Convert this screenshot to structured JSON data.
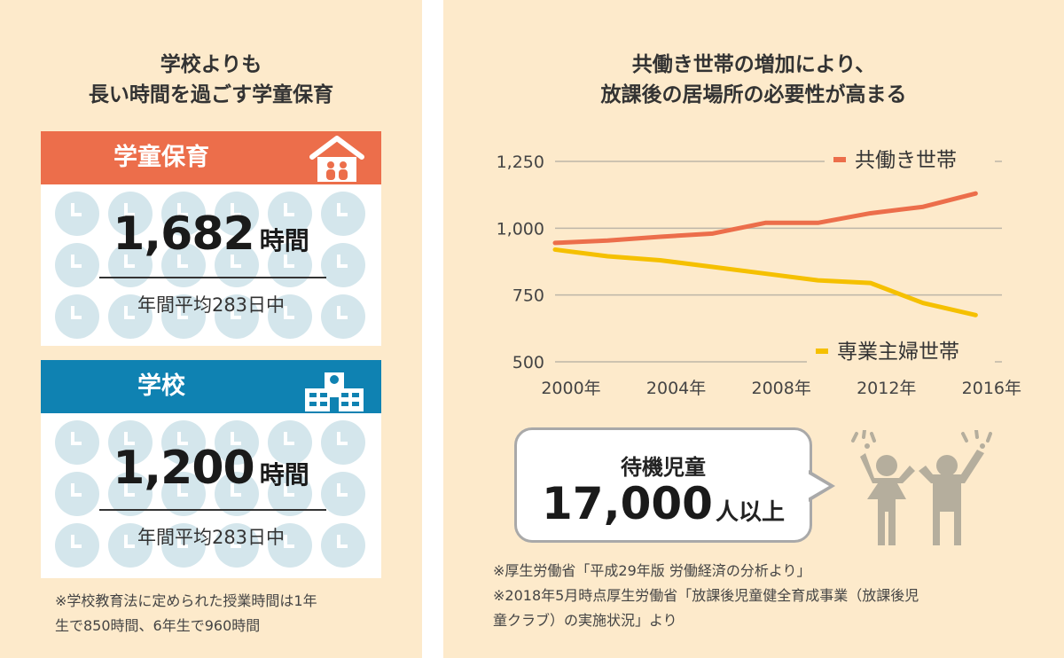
{
  "left": {
    "title_lines": [
      "学校よりも",
      "長い時間を過ごす学童保育"
    ],
    "gakudo": {
      "header": "学童保育",
      "value": "1,682",
      "unit": "時間",
      "sub": "年間平均283日中",
      "icon": "house-icon",
      "color": "#ec6e4b"
    },
    "school": {
      "header": "学校",
      "value": "1,200",
      "unit": "時間",
      "sub": "年間平均283日中",
      "icon": "school-building-icon",
      "color": "#0f82b2"
    },
    "note_lines": [
      "※学校教育法に定められた授業時間は1年",
      "生で850時間、6年生で960時間"
    ]
  },
  "right": {
    "title_lines": [
      "共働き世帯の増加により、",
      "放課後の居場所の必要性が高まる"
    ],
    "bubble": {
      "label": "待機児童",
      "value": "17,000",
      "unit": "人以上"
    },
    "note_lines": [
      "※厚生労働省「平成29年版 労働経済の分析より」",
      "※2018年5月時点厚生労働省「放課後児童健全育成事業（放課後児",
      "童クラブ）の実施状況」より"
    ]
  },
  "chart_data": {
    "type": "line",
    "x": [
      2000,
      2002,
      2004,
      2006,
      2008,
      2010,
      2012,
      2014,
      2016
    ],
    "x_tick_labels": [
      "2000年",
      "2004年",
      "2008年",
      "2012年",
      "2016年"
    ],
    "x_tick_values": [
      2000,
      2004,
      2008,
      2012,
      2016
    ],
    "y_ticks": [
      "500",
      "750",
      "1,000",
      "1,250"
    ],
    "y_tick_values": [
      500,
      750,
      1000,
      1250
    ],
    "ylim": [
      500,
      1250
    ],
    "xlim": [
      2000,
      2017
    ],
    "grid": true,
    "series": [
      {
        "name": "共働き世帯",
        "color": "#ec6e4b",
        "values": [
          945,
          954,
          968,
          980,
          1020,
          1020,
          1056,
          1080,
          1130
        ]
      },
      {
        "name": "専業主婦世帯",
        "color": "#f5c000",
        "values": [
          920,
          895,
          880,
          855,
          830,
          805,
          795,
          720,
          675
        ]
      }
    ]
  }
}
